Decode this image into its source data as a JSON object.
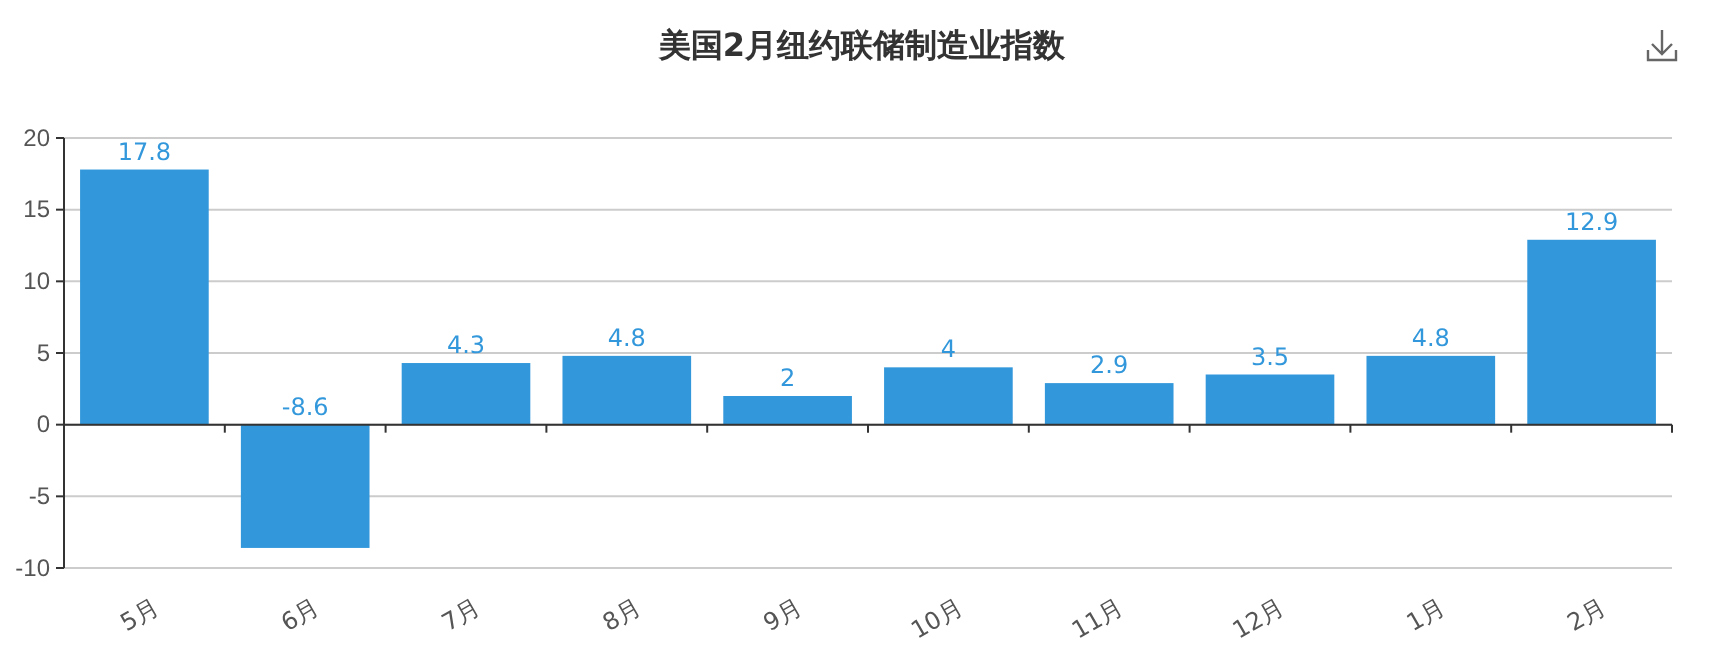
{
  "chart_data": {
    "type": "bar",
    "title": "美国2月纽约联储制造业指数",
    "categories": [
      "5月",
      "6月",
      "7月",
      "8月",
      "9月",
      "10月",
      "11月",
      "12月",
      "1月",
      "2月"
    ],
    "values": [
      17.8,
      -8.6,
      4.3,
      4.8,
      2,
      4,
      2.9,
      3.5,
      4.8,
      12.9
    ],
    "color": "#3398db",
    "ylim": [
      -10,
      20
    ],
    "yticks": [
      -10,
      -5,
      0,
      5,
      10,
      15,
      20
    ],
    "grid": "y",
    "data_labels": true
  }
}
